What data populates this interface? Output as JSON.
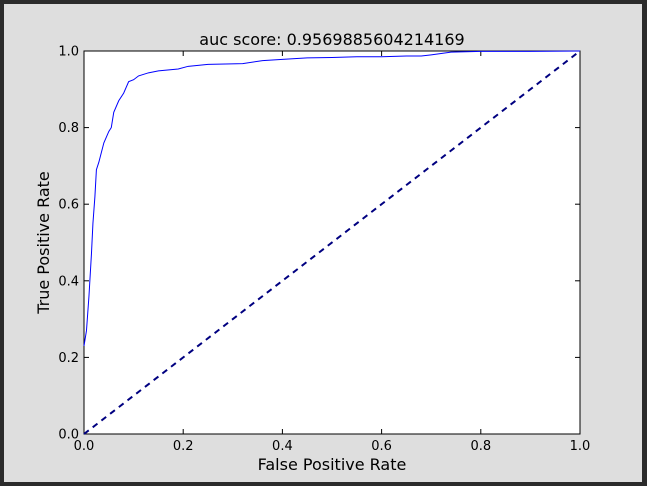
{
  "chart_data": {
    "type": "line",
    "title": "auc score: 0.9569885604214169",
    "xlabel": "False Positive Rate",
    "ylabel": "True Positive Rate",
    "xlim": [
      0.0,
      1.0
    ],
    "ylim": [
      0.0,
      1.0
    ],
    "xticks": [
      "0.0",
      "0.2",
      "0.4",
      "0.6",
      "0.8",
      "1.0"
    ],
    "yticks": [
      "0.0",
      "0.2",
      "0.4",
      "0.6",
      "0.8",
      "1.0"
    ],
    "grid": false,
    "series": [
      {
        "style": "solid",
        "color": "#0000ff",
        "x": [
          0.0,
          0.005,
          0.01,
          0.015,
          0.018,
          0.022,
          0.025,
          0.03,
          0.04,
          0.05,
          0.055,
          0.06,
          0.07,
          0.08,
          0.09,
          0.1,
          0.11,
          0.13,
          0.15,
          0.19,
          0.21,
          0.25,
          0.32,
          0.36,
          0.4,
          0.45,
          0.5,
          0.55,
          0.6,
          0.65,
          0.68,
          0.7,
          0.74,
          0.8,
          0.9,
          1.0
        ],
        "y": [
          0.23,
          0.27,
          0.36,
          0.47,
          0.55,
          0.62,
          0.69,
          0.71,
          0.76,
          0.79,
          0.8,
          0.84,
          0.87,
          0.89,
          0.92,
          0.925,
          0.935,
          0.943,
          0.948,
          0.953,
          0.96,
          0.965,
          0.967,
          0.975,
          0.978,
          0.982,
          0.983,
          0.985,
          0.985,
          0.987,
          0.987,
          0.99,
          0.997,
          0.999,
          0.999,
          1.0
        ]
      },
      {
        "style": "dashed",
        "color": "#000080",
        "x": [
          0.0,
          1.0
        ],
        "y": [
          0.0,
          1.0
        ]
      }
    ]
  }
}
